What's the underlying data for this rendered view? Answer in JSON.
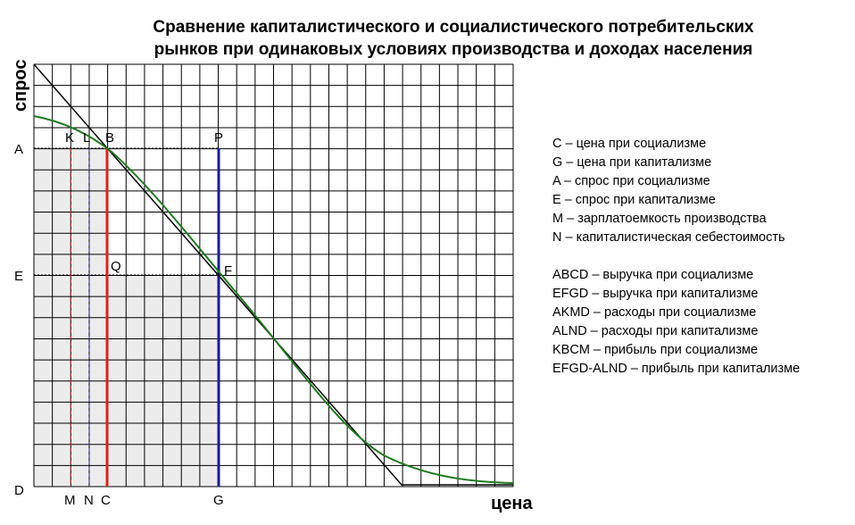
{
  "title": [
    "Сравнение капиталистического и социалистического потребительских",
    "рынков при одинаковых условиях производства и доходах населения"
  ],
  "axes": {
    "y": "спрос",
    "x": "цена"
  },
  "points": {
    "A": "A",
    "E": "E",
    "D": "D",
    "K": "K",
    "L": "L",
    "B": "B",
    "P": "P",
    "Q": "Q",
    "F": "F",
    "M": "M",
    "N": "N",
    "C": "C",
    "G": "G"
  },
  "legend": [
    [
      "C – цена при социализме",
      "G – цена при капитализме",
      "A – спрос при социализме",
      "E – спрос при капитализме",
      "M – зарплатоемкость производства",
      "N – капиталистическая себестоимость"
    ],
    [
      "ABCD – выручка при социализме",
      "EFGD – выручка при капитализме",
      "AKMD – расходы при социализме",
      "ALND – расходы при капитализме",
      "KBCM – прибыль при социализме",
      "EFGD-ALND – прибыль при капитализме"
    ]
  ]
}
